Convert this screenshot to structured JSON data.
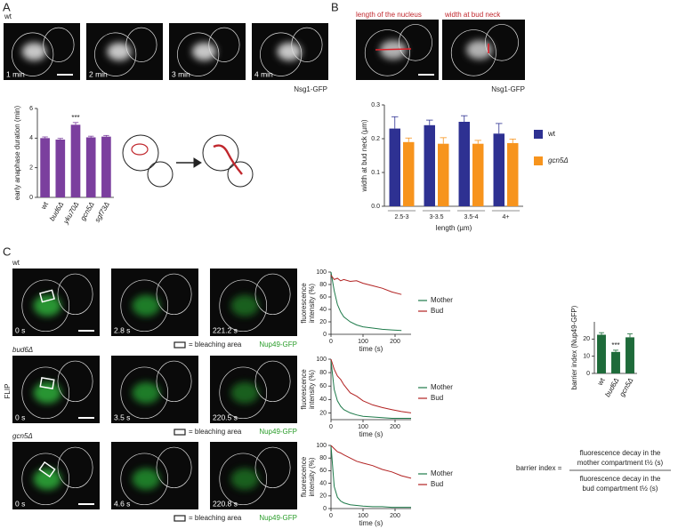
{
  "panel_labels": [
    "A",
    "B",
    "C"
  ],
  "panel_a": {
    "strain": "wt",
    "times": [
      "1 min",
      "2 min",
      "3 min",
      "4 min"
    ],
    "marker": "Nsg1-GFP"
  },
  "panel_b": {
    "measure_labels": [
      "length of the nucleus",
      "width at bud neck"
    ],
    "marker": "Nsg1-GFP"
  },
  "panel_c": {
    "method": "FLIP",
    "rows": [
      {
        "strain": "wt",
        "times": [
          "0 s",
          "2.8 s",
          "221.2 s"
        ],
        "legend": "= bleaching area",
        "marker": "Nup49-GFP"
      },
      {
        "strain": "bud6Δ",
        "times": [
          "0 s",
          "3.5 s",
          "220.5 s"
        ],
        "legend": "= bleaching area",
        "marker": "Nup49-GFP"
      },
      {
        "strain": "gcn5Δ",
        "times": [
          "0 s",
          "4.6 s",
          "220.8 s"
        ],
        "legend": "= bleaching area",
        "marker": "Nup49-GFP"
      }
    ],
    "formula": {
      "lhs": "barrier index =",
      "numerator": [
        "fluorescence decay in the",
        "mother compartment t½ (s)"
      ],
      "denominator": [
        "fluorescence decay in the",
        "bud compartment t½ (s)"
      ]
    }
  },
  "chart_data": [
    {
      "type": "bar",
      "y_label": "early anaphase duration (min)",
      "categories": [
        "wt",
        "bud6Δ",
        "yku70Δ",
        "gcn5Δ",
        "sgf73Δ"
      ],
      "values": [
        4.0,
        3.9,
        4.9,
        4.05,
        4.1
      ],
      "errors": [
        0.08,
        0.08,
        0.15,
        0.08,
        0.08
      ],
      "color": "#7b3f9e",
      "ylim": [
        0,
        6
      ],
      "yticks": [
        0,
        2,
        4,
        6
      ],
      "annotations": [
        {
          "text": "***",
          "category": "yku70Δ"
        }
      ]
    },
    {
      "type": "bar",
      "y_label": "width at bud neck (µm)",
      "x_label": "length (µm)",
      "categories": [
        "2.5-3",
        "3-3.5",
        "3.5-4",
        "4+"
      ],
      "series": [
        {
          "name": "wt",
          "color": "#2e3192",
          "values": [
            0.23,
            0.24,
            0.25,
            0.215
          ],
          "errors": [
            0.035,
            0.015,
            0.018,
            0.03
          ]
        },
        {
          "name": "gcn5Δ",
          "color": "#f7941d",
          "values": [
            0.19,
            0.185,
            0.185,
            0.187
          ],
          "errors": [
            0.012,
            0.018,
            0.01,
            0.012
          ]
        }
      ],
      "ylim": [
        0,
        0.3
      ],
      "yticks": [
        {
          "value": 0,
          "label": "0.0"
        },
        0.1,
        0.2,
        0.3
      ]
    },
    {
      "type": "line",
      "y_label": [
        "fluorescence",
        "intensity (%)"
      ],
      "x_label": "time (s)",
      "x": [
        0,
        10,
        20,
        30,
        40,
        60,
        80,
        100,
        130,
        160,
        190,
        220
      ],
      "series": [
        {
          "name": "Mother",
          "color": "#1e7a4a",
          "values": [
            100,
            70,
            48,
            36,
            28,
            20,
            15,
            12,
            10,
            8,
            7,
            6
          ]
        },
        {
          "name": "Bud",
          "color": "#b22222",
          "values": [
            95,
            88,
            90,
            86,
            88,
            85,
            86,
            82,
            78,
            74,
            68,
            64
          ]
        }
      ],
      "xlim": [
        0,
        250
      ],
      "xticks": [
        0,
        100,
        200
      ],
      "ylim": [
        0,
        100
      ],
      "yticks": [
        0,
        20,
        40,
        60,
        80,
        100
      ]
    },
    {
      "type": "line",
      "y_label": [
        "fluorescence",
        "intensity (%)"
      ],
      "x_label": "time (s)",
      "x": [
        0,
        10,
        20,
        30,
        40,
        60,
        80,
        100,
        130,
        160,
        190,
        220,
        250
      ],
      "series": [
        {
          "name": "Mother",
          "color": "#1e7a4a",
          "values": [
            98,
            55,
            38,
            30,
            25,
            20,
            17,
            15,
            14,
            13,
            12,
            12,
            12
          ]
        },
        {
          "name": "Bud",
          "color": "#b22222",
          "values": [
            100,
            85,
            75,
            70,
            62,
            50,
            45,
            38,
            32,
            28,
            25,
            22,
            20
          ]
        }
      ],
      "xlim": [
        0,
        250
      ],
      "xticks": [
        0,
        100,
        200
      ],
      "ylim": [
        10,
        100
      ],
      "yticks": [
        20,
        40,
        60,
        80,
        100
      ]
    },
    {
      "type": "line",
      "y_label": [
        "fluorescence",
        "intensity (%)"
      ],
      "x_label": "time (s)",
      "x": [
        0,
        10,
        20,
        30,
        40,
        60,
        80,
        100,
        130,
        160,
        190,
        220,
        250
      ],
      "series": [
        {
          "name": "Mother",
          "color": "#1e7a4a",
          "values": [
            100,
            35,
            18,
            12,
            9,
            6,
            5,
            4,
            3,
            3,
            2,
            2,
            2
          ]
        },
        {
          "name": "Bud",
          "color": "#b22222",
          "values": [
            100,
            95,
            90,
            88,
            85,
            80,
            75,
            72,
            68,
            62,
            58,
            52,
            48
          ]
        }
      ],
      "xlim": [
        0,
        250
      ],
      "xticks": [
        0,
        100,
        200
      ],
      "ylim": [
        0,
        100
      ],
      "yticks": [
        0,
        20,
        40,
        60,
        80,
        100
      ]
    },
    {
      "type": "bar",
      "y_label": "barrier index (Nup49-GFP)",
      "categories": [
        "wt",
        "bud6Δ",
        "gcn5Δ"
      ],
      "values": [
        22.5,
        12.5,
        21
      ],
      "errors": [
        1.2,
        1.0,
        2.0
      ],
      "color": "#1e6b3a",
      "ylim": [
        0,
        30
      ],
      "yticks": [
        0,
        10,
        20
      ],
      "annotations": [
        {
          "text": "***",
          "category": "bud6Δ"
        }
      ]
    }
  ]
}
